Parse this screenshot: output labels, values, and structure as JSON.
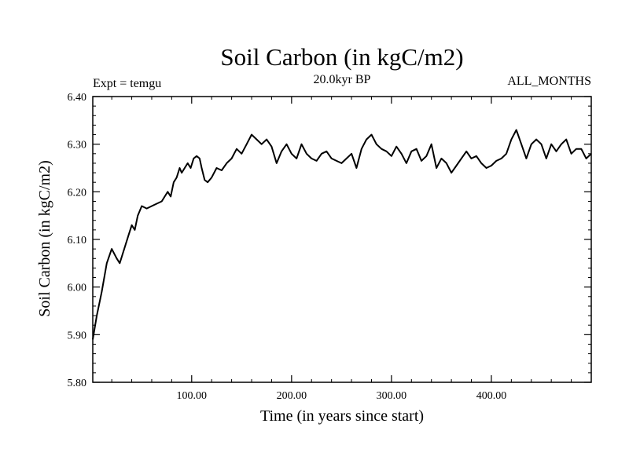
{
  "chart_data": {
    "type": "line",
    "title": "Soil Carbon (in kgC/m2)",
    "subtitle_left": "Expt = temgu",
    "subtitle_center": "20.0kyr BP",
    "subtitle_right": "ALL_MONTHS",
    "xlabel": "Time (in years since start)",
    "ylabel": "Soil Carbon (in kgC/m2)",
    "xlim": [
      1,
      500
    ],
    "ylim": [
      5.8,
      6.4
    ],
    "x_ticks": [
      100,
      200,
      300,
      400
    ],
    "x_tick_labels": [
      "100.00",
      "200.00",
      "300.00",
      "400.00"
    ],
    "y_ticks": [
      5.8,
      5.9,
      6.0,
      6.1,
      6.2,
      6.3,
      6.4
    ],
    "y_tick_labels": [
      "5.80",
      "5.90",
      "6.00",
      "6.10",
      "6.20",
      "6.30",
      "6.40"
    ],
    "series": [
      {
        "name": "Soil Carbon",
        "color": "#000000",
        "x": [
          1,
          5,
          10,
          15,
          20,
          25,
          28,
          31,
          34,
          37,
          40,
          43,
          46,
          50,
          55,
          60,
          65,
          70,
          73,
          76,
          79,
          82,
          85,
          88,
          90,
          93,
          96,
          99,
          102,
          105,
          108,
          110,
          113,
          116,
          120,
          125,
          130,
          135,
          140,
          145,
          150,
          155,
          160,
          165,
          170,
          175,
          180,
          185,
          190,
          195,
          200,
          205,
          210,
          215,
          220,
          225,
          230,
          235,
          240,
          245,
          250,
          255,
          260,
          265,
          270,
          275,
          280,
          285,
          290,
          295,
          300,
          305,
          310,
          315,
          320,
          325,
          330,
          335,
          340,
          345,
          350,
          355,
          360,
          365,
          370,
          375,
          380,
          385,
          390,
          395,
          400,
          405,
          410,
          415,
          420,
          425,
          430,
          435,
          440,
          445,
          450,
          455,
          460,
          465,
          470,
          475,
          480,
          485,
          490,
          495,
          500
        ],
        "values": [
          5.89,
          5.94,
          5.99,
          6.05,
          6.08,
          6.06,
          6.05,
          6.07,
          6.09,
          6.11,
          6.13,
          6.12,
          6.15,
          6.17,
          6.165,
          6.17,
          6.175,
          6.18,
          6.19,
          6.2,
          6.19,
          6.22,
          6.23,
          6.25,
          6.24,
          6.25,
          6.26,
          6.25,
          6.27,
          6.275,
          6.27,
          6.25,
          6.225,
          6.22,
          6.23,
          6.25,
          6.245,
          6.26,
          6.27,
          6.29,
          6.28,
          6.3,
          6.32,
          6.31,
          6.3,
          6.31,
          6.295,
          6.26,
          6.285,
          6.3,
          6.28,
          6.27,
          6.3,
          6.28,
          6.27,
          6.265,
          6.28,
          6.285,
          6.27,
          6.265,
          6.26,
          6.27,
          6.28,
          6.25,
          6.29,
          6.31,
          6.32,
          6.3,
          6.29,
          6.285,
          6.275,
          6.295,
          6.28,
          6.26,
          6.285,
          6.29,
          6.265,
          6.275,
          6.3,
          6.25,
          6.27,
          6.26,
          6.24,
          6.255,
          6.27,
          6.285,
          6.27,
          6.275,
          6.26,
          6.25,
          6.255,
          6.265,
          6.27,
          6.28,
          6.31,
          6.33,
          6.3,
          6.27,
          6.3,
          6.31,
          6.3,
          6.27,
          6.3,
          6.285,
          6.3,
          6.31,
          6.28,
          6.29,
          6.29,
          6.27,
          6.28
        ]
      }
    ]
  }
}
